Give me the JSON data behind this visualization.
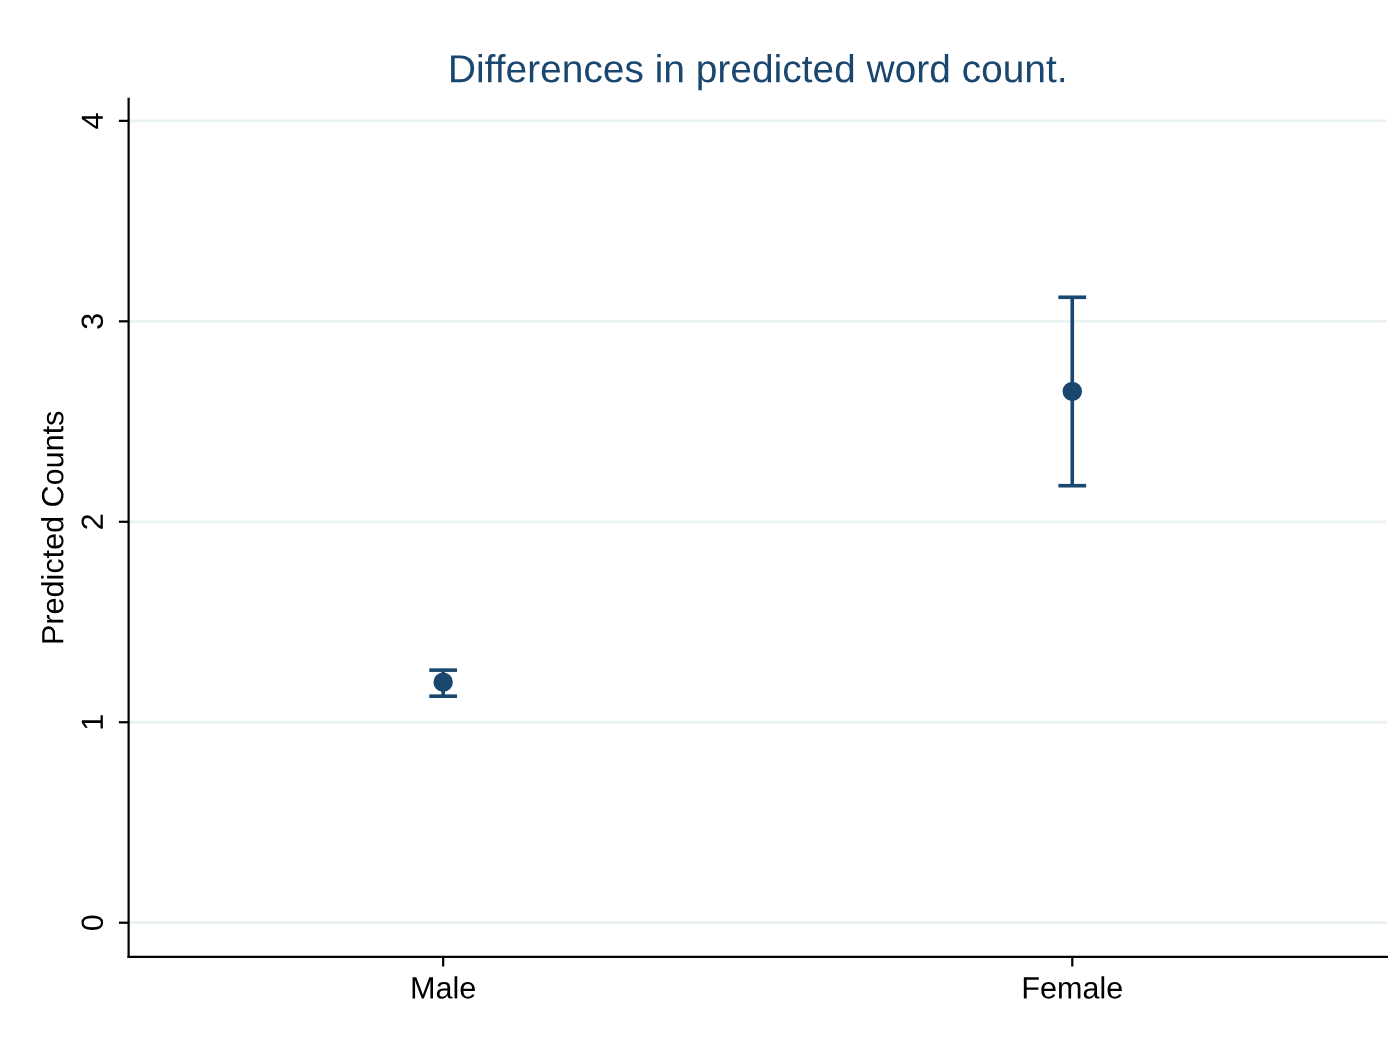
{
  "chart_data": {
    "type": "scatter",
    "title": "Differences in predicted word count.",
    "ylabel": "Predicted Counts",
    "categories": [
      "Male",
      "Female"
    ],
    "series": [
      {
        "color": "#1a476f",
        "values": [
          1.2,
          2.65
        ],
        "errors": [
          [
            1.13,
            1.26
          ],
          [
            2.18,
            3.12
          ]
        ]
      }
    ],
    "ylim": [
      -0.17,
      4.11
    ],
    "yticks": [
      0,
      1,
      2,
      3,
      4
    ],
    "grid": "y",
    "marker": "circle"
  }
}
